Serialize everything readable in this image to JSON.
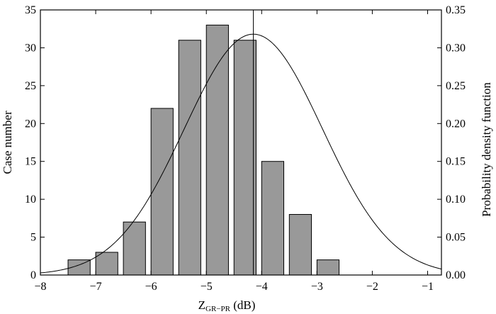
{
  "chart_data": {
    "type": "bar",
    "xlabel": "Z",
    "xlabel_sub": "GR−PR",
    "xlabel_unit": " (dB)",
    "ylabel_left": "Case number",
    "ylabel_right": "Probability density function",
    "xlim": [
      -8,
      -0.75
    ],
    "ylim_left": [
      0,
      35
    ],
    "ylim_right": [
      0,
      0.35
    ],
    "x_ticks": [
      -8,
      -7,
      -6,
      -5,
      -4,
      -3,
      -2,
      -1
    ],
    "x_tick_labels": [
      "−8",
      "−7",
      "−6",
      "−5",
      "−4",
      "−3",
      "−2",
      "−1"
    ],
    "y_left_ticks": [
      0,
      5,
      10,
      15,
      20,
      25,
      30,
      35
    ],
    "y_left_tick_labels": [
      "0",
      "5",
      "10",
      "15",
      "20",
      "25",
      "30",
      "35"
    ],
    "y_right_ticks": [
      0,
      0.05,
      0.1,
      0.15,
      0.2,
      0.25,
      0.3,
      0.35
    ],
    "y_right_tick_labels": [
      "0.00",
      "0.05",
      "0.10",
      "0.15",
      "0.20",
      "0.25",
      "0.30",
      "0.35"
    ],
    "bars": [
      {
        "x_start": -7.5,
        "x_end": -7.1,
        "value": 2
      },
      {
        "x_start": -7.0,
        "x_end": -6.6,
        "value": 3
      },
      {
        "x_start": -6.5,
        "x_end": -6.1,
        "value": 7
      },
      {
        "x_start": -6.0,
        "x_end": -5.6,
        "value": 22
      },
      {
        "x_start": -5.5,
        "x_end": -5.1,
        "value": 31
      },
      {
        "x_start": -5.0,
        "x_end": -4.6,
        "value": 33
      },
      {
        "x_start": -4.5,
        "x_end": -4.1,
        "value": 31
      },
      {
        "x_start": -4.0,
        "x_end": -3.6,
        "value": 15
      },
      {
        "x_start": -3.5,
        "x_end": -3.1,
        "value": 8
      },
      {
        "x_start": -3.0,
        "x_end": -2.6,
        "value": 2
      }
    ],
    "pdf_curve": {
      "mean": -4.15,
      "std": 1.25,
      "peak": 0.318
    },
    "mean_line_x": -4.15,
    "grid": false,
    "colors": {
      "bar_fill": "#999999",
      "bar_edge": "#000000",
      "line": "#000000"
    }
  }
}
